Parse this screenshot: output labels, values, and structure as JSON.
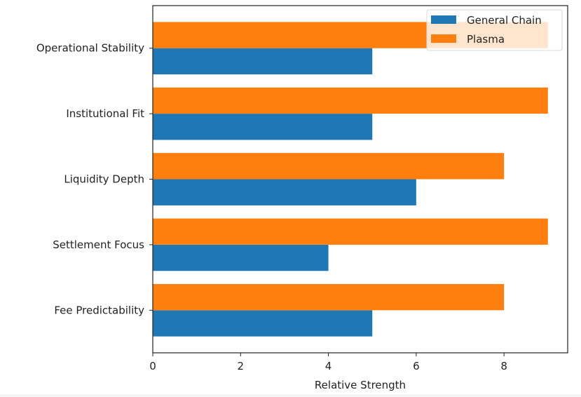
{
  "chart_data": {
    "type": "bar",
    "orientation": "horizontal",
    "title": "",
    "xlabel": "Relative Strength",
    "ylabel": "",
    "categories": [
      "Fee Predictability",
      "Settlement Focus",
      "Liquidity Depth",
      "Institutional Fit",
      "Operational Stability"
    ],
    "series": [
      {
        "name": "General Chain",
        "color": "#1f77b4",
        "values": [
          5,
          4,
          6,
          5,
          5
        ]
      },
      {
        "name": "Plasma",
        "color": "#ff7f0e",
        "values": [
          8,
          9,
          8,
          9,
          9
        ]
      }
    ],
    "xlim": [
      0,
      9.45
    ],
    "xticks": [
      0,
      2,
      4,
      6,
      8
    ],
    "xtick_labels": [
      "0",
      "2",
      "4",
      "6",
      "8"
    ],
    "grid": false,
    "legend": {
      "position": "top-right",
      "entries": [
        "General Chain",
        "Plasma"
      ]
    }
  }
}
